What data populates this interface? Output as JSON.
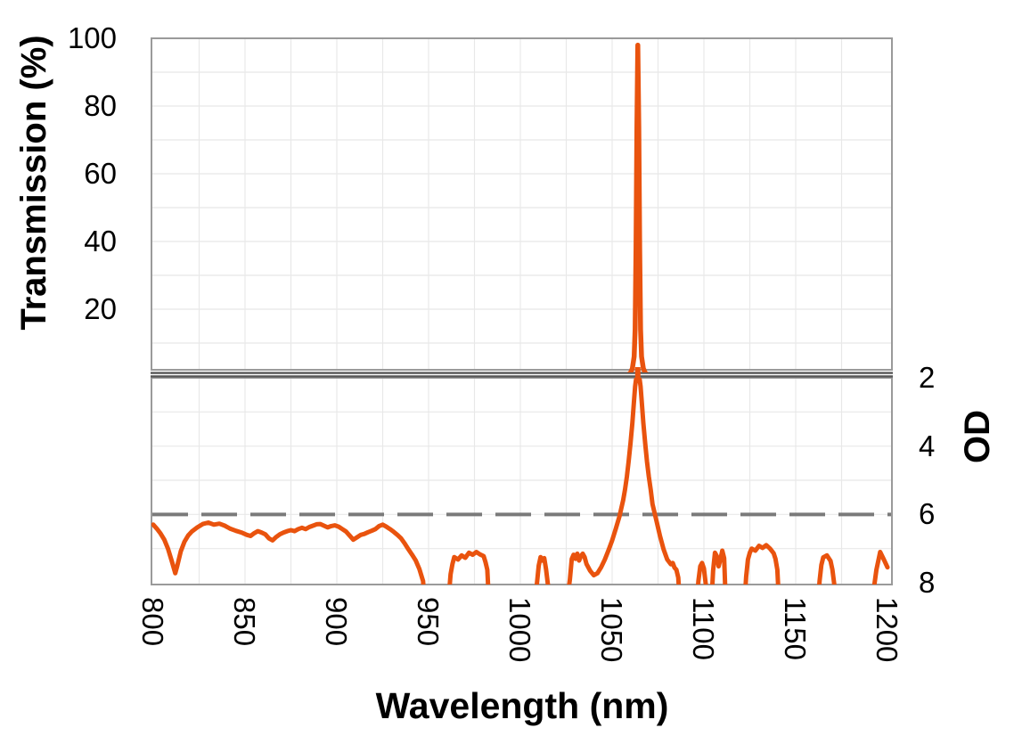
{
  "chart_data": {
    "type": "line",
    "title": "",
    "xlabel": "Wavelength (nm)",
    "xlim": [
      800,
      1200
    ],
    "x_ticks": [
      800,
      850,
      900,
      950,
      1000,
      1050,
      1100,
      1150,
      1200
    ],
    "x_minor_gridline_step_nm": 25,
    "grid": true,
    "axis_break": true,
    "legend": "none",
    "colors": {
      "series": "#E9530E",
      "dashed_line": "#7A7A7A",
      "gridline": "#E8E8E8",
      "panel_border": "#9A9A9A",
      "break_line": "#565656",
      "text": "#000000",
      "background": "#FFFFFF"
    },
    "peak": {
      "wavelength_nm": 1064,
      "max_transmission_pct": 98
    },
    "panels": [
      {
        "id": "transmission",
        "ylabel": "Transmission (%)",
        "yticks": [
          100,
          80,
          60,
          40,
          20
        ],
        "ylim": [
          0,
          100
        ],
        "gridline_step": 10,
        "series": {
          "name": "transmission-spectrum",
          "color": "#E9530E",
          "points": [
            [
              800,
              0
            ],
            [
              950,
              0
            ],
            [
              1000,
              0
            ],
            [
              1040,
              0
            ],
            [
              1050,
              0
            ],
            [
              1055,
              0.1
            ],
            [
              1058,
              0.4
            ],
            [
              1060,
              1.2
            ],
            [
              1061,
              2.5
            ],
            [
              1062,
              6
            ],
            [
              1062.5,
              14
            ],
            [
              1063,
              38
            ],
            [
              1063.5,
              74
            ],
            [
              1064,
              98
            ],
            [
              1064.5,
              74
            ],
            [
              1065,
              38
            ],
            [
              1065.5,
              14
            ],
            [
              1066,
              6
            ],
            [
              1067,
              2.5
            ],
            [
              1068,
              1.2
            ],
            [
              1070,
              0.4
            ],
            [
              1075,
              0.1
            ],
            [
              1100,
              0
            ],
            [
              1150,
              0
            ],
            [
              1200,
              0
            ]
          ]
        }
      },
      {
        "id": "od",
        "ylabel": "OD",
        "yticks": [
          2,
          4,
          6,
          8
        ],
        "ylim": [
          2,
          8
        ],
        "inverted": true,
        "gridline_step": 1,
        "offscale_note": "OD 8.7 encodes trace diving below the OD 8 axis (off scale)",
        "annotations": [
          {
            "type": "dashed-line",
            "label": "OD 6 blocking level",
            "od": 6,
            "color": "#7A7A7A"
          }
        ],
        "series": {
          "name": "optical-density-spectrum",
          "color": "#E9530E",
          "points": [
            [
              800,
              6.3
            ],
            [
              802,
              6.42
            ],
            [
              804,
              6.56
            ],
            [
              806,
              6.74
            ],
            [
              808,
              7.0
            ],
            [
              810,
              7.35
            ],
            [
              812,
              7.72
            ],
            [
              813,
              7.52
            ],
            [
              815,
              7.08
            ],
            [
              817,
              6.8
            ],
            [
              819,
              6.62
            ],
            [
              821,
              6.5
            ],
            [
              824,
              6.38
            ],
            [
              827,
              6.28
            ],
            [
              830,
              6.24
            ],
            [
              833,
              6.3
            ],
            [
              836,
              6.27
            ],
            [
              839,
              6.33
            ],
            [
              842,
              6.42
            ],
            [
              845,
              6.48
            ],
            [
              848,
              6.53
            ],
            [
              851,
              6.6
            ],
            [
              853,
              6.63
            ],
            [
              855,
              6.55
            ],
            [
              857,
              6.49
            ],
            [
              859,
              6.53
            ],
            [
              861,
              6.58
            ],
            [
              863,
              6.7
            ],
            [
              865,
              6.76
            ],
            [
              867,
              6.66
            ],
            [
              869,
              6.58
            ],
            [
              871,
              6.53
            ],
            [
              873,
              6.49
            ],
            [
              875,
              6.46
            ],
            [
              877,
              6.49
            ],
            [
              879,
              6.43
            ],
            [
              881,
              6.39
            ],
            [
              883,
              6.43
            ],
            [
              885,
              6.37
            ],
            [
              887,
              6.33
            ],
            [
              889,
              6.29
            ],
            [
              891,
              6.28
            ],
            [
              893,
              6.33
            ],
            [
              895,
              6.38
            ],
            [
              897,
              6.34
            ],
            [
              899,
              6.32
            ],
            [
              901,
              6.36
            ],
            [
              903,
              6.43
            ],
            [
              905,
              6.5
            ],
            [
              907,
              6.62
            ],
            [
              909,
              6.74
            ],
            [
              911,
              6.67
            ],
            [
              913,
              6.6
            ],
            [
              915,
              6.57
            ],
            [
              917,
              6.52
            ],
            [
              919,
              6.48
            ],
            [
              921,
              6.43
            ],
            [
              923,
              6.34
            ],
            [
              925,
              6.3
            ],
            [
              927,
              6.36
            ],
            [
              929,
              6.43
            ],
            [
              931,
              6.51
            ],
            [
              933,
              6.6
            ],
            [
              935,
              6.7
            ],
            [
              937,
              6.85
            ],
            [
              939,
              7.02
            ],
            [
              941,
              7.18
            ],
            [
              943,
              7.35
            ],
            [
              945,
              7.6
            ],
            [
              947,
              7.95
            ],
            [
              948,
              8.7
            ],
            [
              953,
              8.7
            ],
            [
              958,
              8.7
            ],
            [
              961,
              8.4
            ],
            [
              962,
              7.75
            ],
            [
              963,
              7.45
            ],
            [
              964,
              7.25
            ],
            [
              966,
              7.32
            ],
            [
              968,
              7.2
            ],
            [
              970,
              7.27
            ],
            [
              972,
              7.12
            ],
            [
              974,
              7.18
            ],
            [
              976,
              7.1
            ],
            [
              978,
              7.17
            ],
            [
              980,
              7.22
            ],
            [
              981,
              7.4
            ],
            [
              982,
              7.62
            ],
            [
              983,
              8.7
            ],
            [
              988,
              8.7
            ],
            [
              995,
              8.7
            ],
            [
              1002,
              8.7
            ],
            [
              1007,
              8.7
            ],
            [
              1009,
              8.05
            ],
            [
              1010,
              7.5
            ],
            [
              1011,
              7.25
            ],
            [
              1012,
              7.35
            ],
            [
              1013,
              7.28
            ],
            [
              1014,
              7.6
            ],
            [
              1015,
              8.05
            ],
            [
              1016,
              8.7
            ],
            [
              1020,
              8.7
            ],
            [
              1025,
              8.7
            ],
            [
              1027,
              7.9
            ],
            [
              1028,
              7.3
            ],
            [
              1029,
              7.18
            ],
            [
              1030,
              7.3
            ],
            [
              1031,
              7.15
            ],
            [
              1032,
              7.35
            ],
            [
              1033,
              7.22
            ],
            [
              1034,
              7.15
            ],
            [
              1035,
              7.25
            ],
            [
              1036,
              7.45
            ],
            [
              1038,
              7.65
            ],
            [
              1040,
              7.78
            ],
            [
              1042,
              7.72
            ],
            [
              1044,
              7.55
            ],
            [
              1046,
              7.32
            ],
            [
              1048,
              7.05
            ],
            [
              1050,
              6.76
            ],
            [
              1052,
              6.42
            ],
            [
              1054,
              6.06
            ],
            [
              1056,
              5.58
            ],
            [
              1057,
              5.28
            ],
            [
              1058,
              4.9
            ],
            [
              1059,
              4.45
            ],
            [
              1060,
              3.92
            ],
            [
              1061,
              3.32
            ],
            [
              1062,
              2.62
            ],
            [
              1062.5,
              2.25
            ],
            [
              1063,
              2.05
            ],
            [
              1064,
              1.92
            ],
            [
              1065,
              2.05
            ],
            [
              1065.5,
              2.25
            ],
            [
              1066,
              2.62
            ],
            [
              1067,
              3.32
            ],
            [
              1068,
              3.92
            ],
            [
              1069,
              4.45
            ],
            [
              1070,
              4.9
            ],
            [
              1071,
              5.28
            ],
            [
              1072,
              5.7
            ],
            [
              1074,
              6.15
            ],
            [
              1076,
              6.62
            ],
            [
              1078,
              7.02
            ],
            [
              1080,
              7.32
            ],
            [
              1082,
              7.46
            ],
            [
              1083,
              7.42
            ],
            [
              1084,
              7.56
            ],
            [
              1085,
              7.62
            ],
            [
              1086,
              7.85
            ],
            [
              1087,
              8.7
            ],
            [
              1092,
              8.7
            ],
            [
              1096,
              8.7
            ],
            [
              1097,
              7.95
            ],
            [
              1098,
              7.52
            ],
            [
              1099,
              7.42
            ],
            [
              1100,
              7.58
            ],
            [
              1101,
              8.05
            ],
            [
              1102,
              8.7
            ],
            [
              1104,
              8.7
            ],
            [
              1105,
              7.65
            ],
            [
              1106,
              7.12
            ],
            [
              1107,
              7.22
            ],
            [
              1108,
              7.52
            ],
            [
              1109,
              7.32
            ],
            [
              1110,
              7.06
            ],
            [
              1111,
              7.28
            ],
            [
              1112,
              8.7
            ],
            [
              1117,
              8.7
            ],
            [
              1122,
              8.7
            ],
            [
              1123,
              7.82
            ],
            [
              1124,
              7.32
            ],
            [
              1125,
              7.12
            ],
            [
              1126,
              7.0
            ],
            [
              1128,
              7.06
            ],
            [
              1130,
              6.92
            ],
            [
              1132,
              6.98
            ],
            [
              1134,
              6.9
            ],
            [
              1136,
              7.0
            ],
            [
              1138,
              7.14
            ],
            [
              1139,
              7.3
            ],
            [
              1140,
              7.62
            ],
            [
              1141,
              8.7
            ],
            [
              1148,
              8.7
            ],
            [
              1156,
              8.7
            ],
            [
              1162,
              8.7
            ],
            [
              1163,
              7.95
            ],
            [
              1164,
              7.48
            ],
            [
              1165,
              7.26
            ],
            [
              1167,
              7.2
            ],
            [
              1169,
              7.36
            ],
            [
              1170,
              7.62
            ],
            [
              1171,
              8.05
            ],
            [
              1172,
              8.7
            ],
            [
              1180,
              8.7
            ],
            [
              1190,
              8.7
            ],
            [
              1192,
              8.4
            ],
            [
              1194,
              7.62
            ],
            [
              1196,
              7.1
            ],
            [
              1198,
              7.32
            ],
            [
              1200,
              7.55
            ]
          ]
        }
      }
    ]
  }
}
